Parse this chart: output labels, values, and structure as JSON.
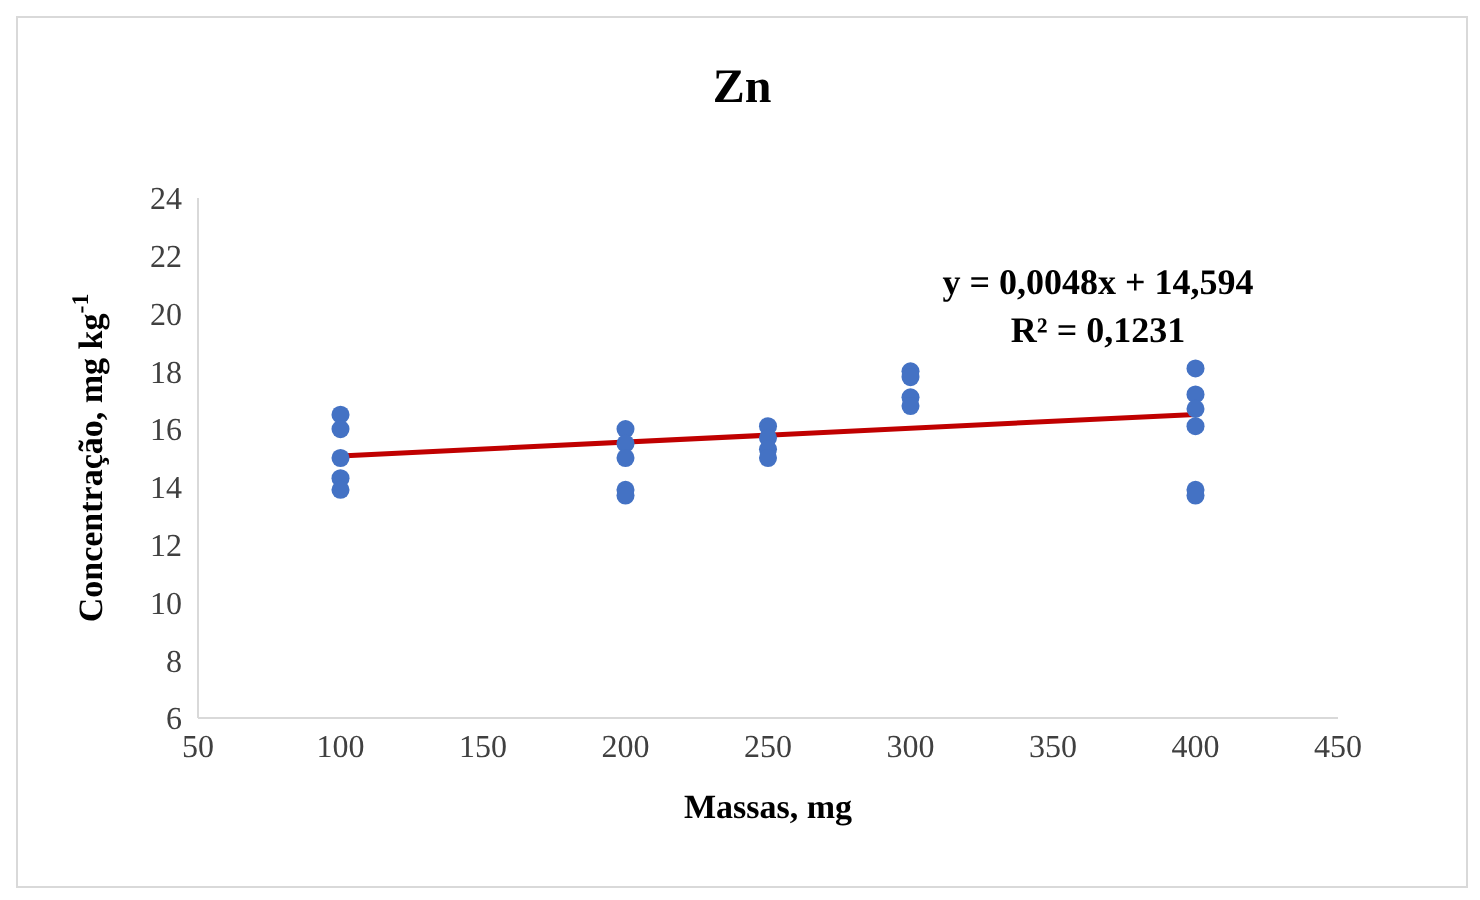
{
  "chart_data": {
    "type": "scatter",
    "title": "Zn",
    "xlabel": "Massas, mg",
    "ylabel": "Concentração, mg kg$^{-1}$",
    "xlim": [
      50,
      450
    ],
    "xticks": [
      50,
      100,
      150,
      200,
      250,
      300,
      350,
      400,
      450
    ],
    "ylim": [
      6,
      24
    ],
    "yticks": [
      6,
      8,
      10,
      12,
      14,
      16,
      18,
      20,
      22,
      24
    ],
    "grid": false,
    "legend": false,
    "marker": "circle",
    "annotations": [
      "y = 0,0048x + 14,594",
      "R² = 0,1231"
    ],
    "series": [
      {
        "color": "#4472c4",
        "x": [
          100,
          100,
          100,
          100,
          100,
          200,
          200,
          200,
          200,
          200,
          250,
          250,
          250,
          250,
          300,
          300,
          300,
          300,
          400,
          400,
          400,
          400,
          400,
          400
        ],
        "values": [
          16.5,
          16.0,
          15.0,
          14.3,
          13.9,
          16.0,
          15.5,
          15.0,
          13.9,
          13.7,
          16.1,
          15.7,
          15.3,
          15.0,
          18.0,
          17.8,
          17.1,
          16.8,
          18.1,
          17.2,
          16.7,
          16.1,
          13.9,
          13.7
        ]
      },
      {
        "type": "line",
        "marker": "none",
        "color": "#c00000",
        "x": [
          100,
          400
        ],
        "values": [
          15.07,
          16.51
        ]
      }
    ]
  }
}
